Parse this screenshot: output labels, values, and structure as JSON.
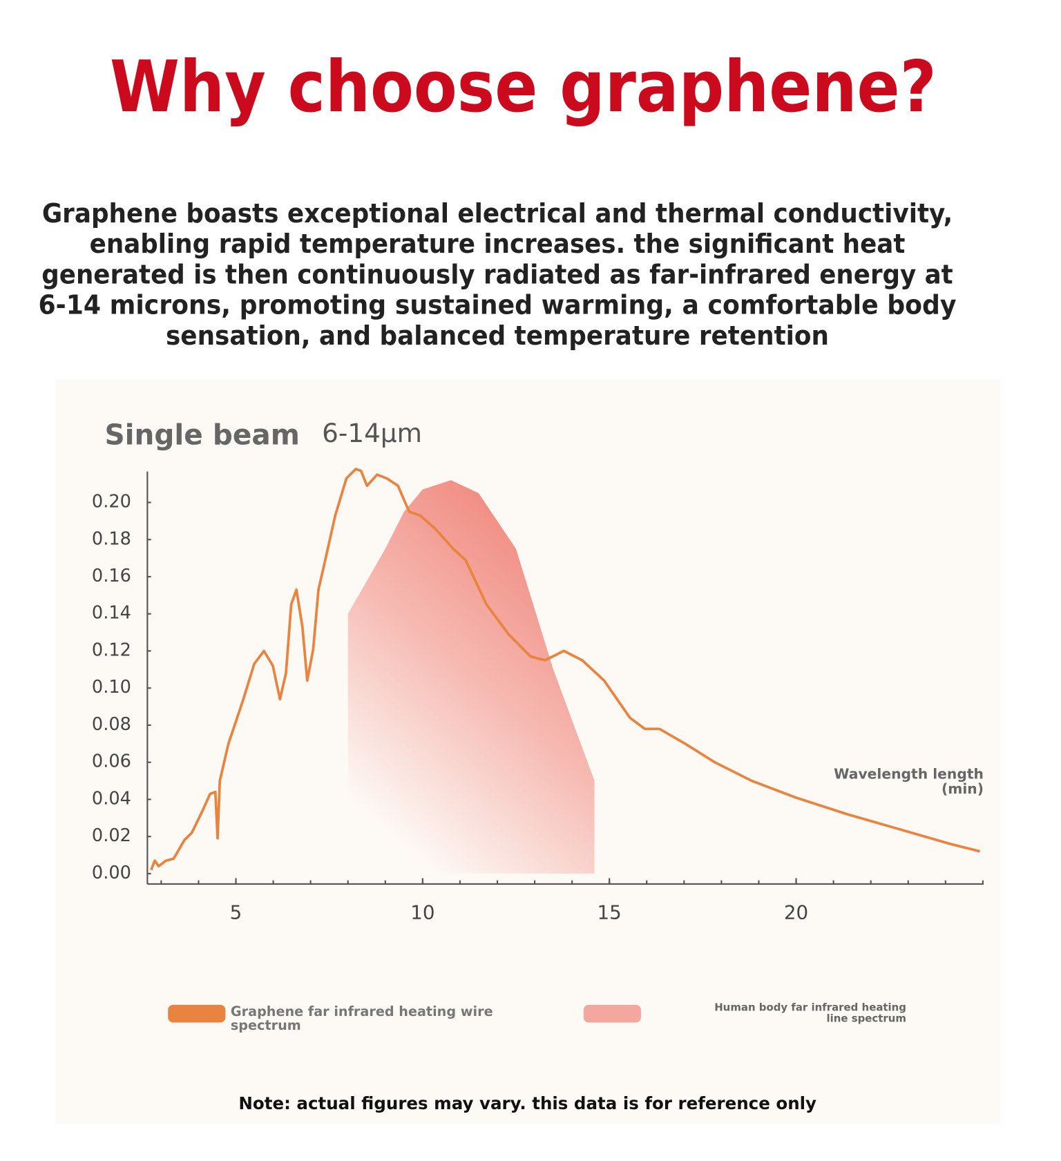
{
  "header": {
    "title": "Why choose graphene?"
  },
  "body": {
    "lines": [
      "Graphene boasts exceptional electrical and thermal conductivity,",
      "enabling rapid temperature increases. the significant heat",
      "generated is then continuously radiated as far-infrared energy at",
      "6-14 microns, promoting sustained warming, a comfortable body",
      "sensation, and balanced temperature retention"
    ]
  },
  "chart_data": {
    "type": "line",
    "title": "Single beam",
    "subtitle": "6-14μm",
    "x_label": "Wavelength length (min)",
    "xlim": [
      2.63,
      25.02
    ],
    "ylim": [
      -0.0056,
      0.2167
    ],
    "xticks": [
      5,
      10,
      15,
      20
    ],
    "xminor_ticks": [
      3,
      4,
      5,
      6,
      7,
      8,
      9,
      10,
      11,
      12,
      13,
      14,
      15,
      16,
      17,
      18,
      19,
      20,
      21,
      22,
      23,
      24,
      25
    ],
    "yticks": [
      {
        "value": 0,
        "label": "0.00"
      },
      {
        "value": 0.02,
        "label": "0.02"
      },
      {
        "value": 0.04,
        "label": "0.04"
      },
      {
        "value": 0.06,
        "label": "0.06"
      },
      {
        "value": 0.08,
        "label": "0.08"
      },
      {
        "value": 0.1,
        "label": "0.10"
      },
      {
        "value": 0.12,
        "label": "0.12"
      },
      {
        "value": 0.14,
        "label": "0.14"
      },
      {
        "value": 0.16,
        "label": "0.16"
      },
      {
        "value": 0.18,
        "label": "0.18"
      },
      {
        "value": 0.2,
        "label": "0.20"
      }
    ],
    "series": [
      {
        "name": "Graphene far infrared heating wire spectrum",
        "color": "#e8843f",
        "kind": "line",
        "x": [
          2.73,
          2.83,
          2.93,
          3.13,
          3.33,
          3.42,
          3.62,
          3.82,
          4.11,
          4.31,
          4.45,
          4.51,
          4.57,
          4.8,
          5.2,
          5.49,
          5.75,
          5.99,
          6.18,
          6.34,
          6.48,
          6.62,
          6.78,
          6.91,
          7.07,
          7.21,
          7.37,
          7.66,
          7.96,
          8.21,
          8.35,
          8.51,
          8.78,
          9.04,
          9.34,
          9.64,
          9.93,
          10.33,
          10.82,
          11.15,
          11.71,
          12.3,
          12.89,
          13.28,
          13.78,
          14.27,
          14.86,
          15.55,
          15.95,
          16.34,
          17.03,
          17.82,
          18.81,
          19.99,
          21.37,
          22.75,
          24.13,
          24.92
        ],
        "values": [
          0.002,
          0.007,
          0.004,
          0.007,
          0.008,
          0.011,
          0.018,
          0.022,
          0.034,
          0.043,
          0.044,
          0.019,
          0.05,
          0.07,
          0.094,
          0.113,
          0.12,
          0.112,
          0.094,
          0.108,
          0.145,
          0.153,
          0.133,
          0.104,
          0.121,
          0.153,
          0.167,
          0.193,
          0.213,
          0.218,
          0.217,
          0.209,
          0.215,
          0.213,
          0.209,
          0.195,
          0.193,
          0.186,
          0.175,
          0.169,
          0.145,
          0.129,
          0.117,
          0.115,
          0.12,
          0.115,
          0.104,
          0.084,
          0.078,
          0.078,
          0.07,
          0.06,
          0.05,
          0.041,
          0.032,
          0.024,
          0.016,
          0.012
        ]
      },
      {
        "name": "Human body far infrared heating line spectrum",
        "color": "#f0857a",
        "kind": "area",
        "x": [
          8.0,
          9.0,
          9.5,
          10.0,
          10.76,
          11.5,
          12.5,
          13.5,
          14.6
        ],
        "values": [
          0.14,
          0.175,
          0.195,
          0.207,
          0.212,
          0.205,
          0.175,
          0.11,
          0.05
        ]
      }
    ]
  },
  "note": "Note: actual figures may vary. this data is for reference only"
}
